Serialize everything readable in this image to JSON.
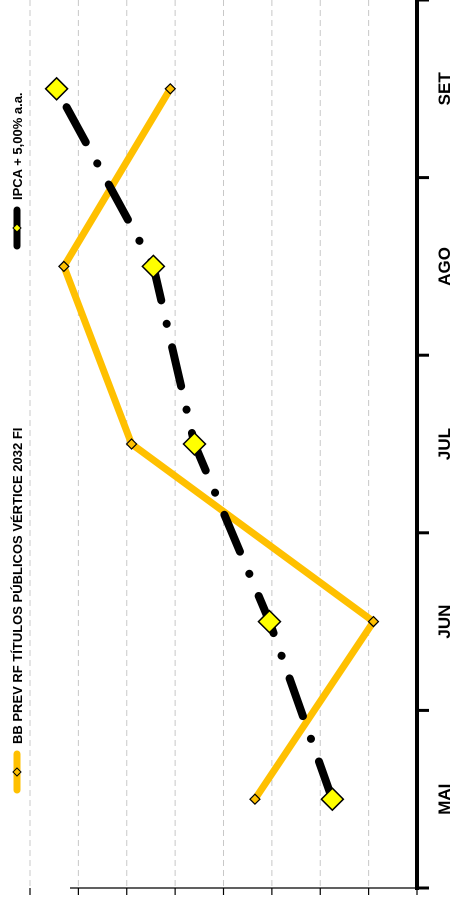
{
  "chart_data": {
    "type": "line",
    "title": "",
    "xlabel": "",
    "ylabel": "",
    "orientation": "rotated-90-clockwise",
    "categories": [
      "MAI",
      "JUN",
      "JUL",
      "AGO",
      "SET"
    ],
    "ylim": [
      0,
      8
    ],
    "grid": true,
    "legend_position": "top",
    "series": [
      {
        "name": "BB PREV RF TÍTULOS PÚBLICOS VÉRTICE 2032 FI",
        "values": [
          3.35,
          0.9,
          5.9,
          7.3,
          5.1
        ],
        "color": "#FFC000",
        "marker_color": "#FFC000",
        "line_style": "solid"
      },
      {
        "name": "IPCA + 5,00% a.a.",
        "values": [
          1.75,
          3.05,
          4.6,
          5.45,
          7.45
        ],
        "color": "#000000",
        "marker_color": "#FFFF00",
        "line_style": "dash-dot"
      }
    ]
  }
}
